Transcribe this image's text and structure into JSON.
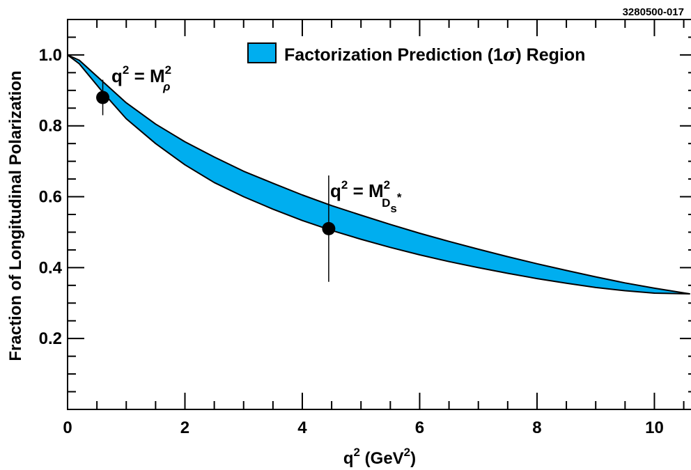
{
  "figure_tag": "3280500-017",
  "colors": {
    "band_fill": "#00aeef",
    "band_stroke": "#000000",
    "axis": "#000000"
  },
  "chart_data": {
    "type": "area",
    "title": "",
    "xlabel": {
      "base": "q",
      "sup": "2",
      "mid": " (GeV",
      "sup2": "2",
      "end": ")"
    },
    "ylabel": "Fraction of Longitudinal Polarization",
    "xlim": [
      0,
      10.6
    ],
    "ylim": [
      0,
      1.1
    ],
    "x_ticks": [
      0,
      2,
      4,
      6,
      8,
      10
    ],
    "x_tick_labels": [
      "0",
      "2",
      "4",
      "6",
      "8",
      "10"
    ],
    "y_ticks": [
      0.2,
      0.4,
      0.6,
      0.8,
      1.0
    ],
    "y_tick_labels": [
      "0.2",
      "0.4",
      "0.6",
      "0.8",
      "1.0"
    ],
    "grid": false,
    "legend": {
      "placement": "top-right",
      "text_main": "Factorization Prediction (1",
      "text_sigma": "σ",
      "text_end": ") Region"
    },
    "band": {
      "name": "Factorization Prediction (1σ) Region",
      "x": [
        0.0,
        0.2,
        0.6,
        1.0,
        1.5,
        2.0,
        2.5,
        3.0,
        3.5,
        4.0,
        4.5,
        5.0,
        5.5,
        6.0,
        6.5,
        7.0,
        7.5,
        8.0,
        8.5,
        9.0,
        9.5,
        10.0,
        10.6
      ],
      "upper": [
        1.0,
        0.985,
        0.925,
        0.865,
        0.805,
        0.755,
        0.712,
        0.672,
        0.638,
        0.605,
        0.575,
        0.548,
        0.522,
        0.497,
        0.474,
        0.452,
        0.431,
        0.411,
        0.392,
        0.374,
        0.357,
        0.342,
        0.326
      ],
      "lower": [
        1.0,
        0.975,
        0.895,
        0.82,
        0.75,
        0.69,
        0.64,
        0.6,
        0.565,
        0.533,
        0.505,
        0.48,
        0.457,
        0.436,
        0.417,
        0.4,
        0.384,
        0.369,
        0.356,
        0.344,
        0.335,
        0.328,
        0.326
      ]
    },
    "points": [
      {
        "x": 0.6,
        "y": 0.88,
        "yerr_low": 0.83,
        "yerr_high": 0.93,
        "label": {
          "lhs": "q",
          "sup": "2",
          "eq": " = M",
          "msup": "2",
          "sub": "ρ"
        }
      },
      {
        "x": 4.45,
        "y": 0.51,
        "yerr_low": 0.36,
        "yerr_high": 0.66,
        "label": {
          "lhs": "q",
          "sup": "2",
          "eq": " = M",
          "msup": "2",
          "sub": "D",
          "subsub": "s",
          "subsup": "*"
        }
      }
    ]
  }
}
